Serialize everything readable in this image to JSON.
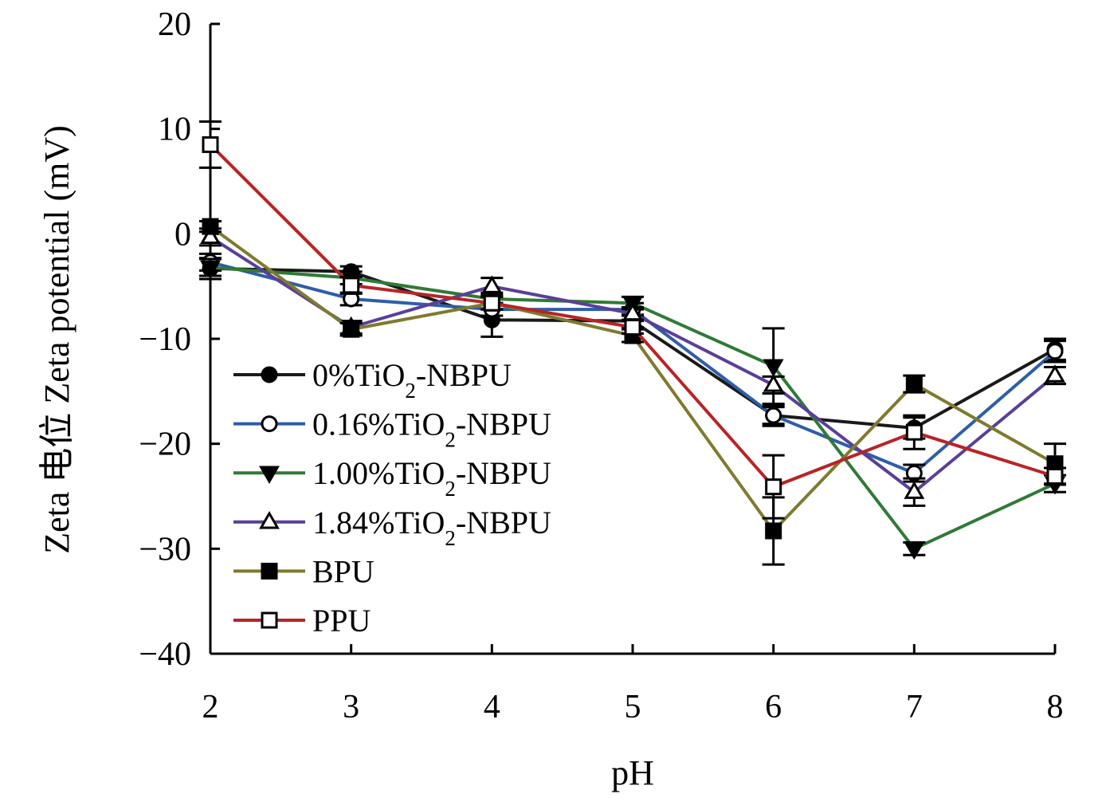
{
  "chart_data": {
    "type": "line",
    "xlabel": "pH",
    "ylabel": "Zeta 电位 Zeta potential (mV)",
    "xlim": [
      2,
      8
    ],
    "ylim": [
      -40,
      20
    ],
    "x": [
      2,
      3,
      4,
      5,
      6,
      7,
      8
    ],
    "x_ticks": [
      2,
      3,
      4,
      5,
      6,
      7,
      8
    ],
    "y_ticks": [
      20,
      10,
      0,
      -10,
      -20,
      -30,
      -40
    ],
    "y_tick_labels": [
      "20",
      "10",
      "0",
      "−10",
      "−20",
      "−30",
      "−40"
    ],
    "grid": false,
    "legend_position": "left",
    "series": [
      {
        "name_prefix": "0%TiO",
        "name_sub": "2",
        "name_suffix": "-NBPU",
        "color": "#1a1a1a",
        "marker": "circle-filled",
        "values": [
          -3.3,
          -3.6,
          -8.2,
          -8.3,
          -17.3,
          -18.5,
          -11.0
        ],
        "errors": [
          1.0,
          0.5,
          1.6,
          0.6,
          1.0,
          1.0,
          1.0
        ]
      },
      {
        "name_prefix": "0.16%TiO",
        "name_sub": "2",
        "name_suffix": "-NBPU",
        "color": "#2e5ea8",
        "marker": "circle-open",
        "values": [
          -2.7,
          -6.2,
          -7.2,
          -7.2,
          -17.3,
          -22.8,
          -11.2
        ],
        "errors": [
          0.8,
          0.6,
          0.6,
          0.6,
          0.8,
          0.8,
          1.0
        ]
      },
      {
        "name_prefix": "1.00%TiO",
        "name_sub": "2",
        "name_suffix": "-NBPU",
        "color": "#2f7a37",
        "marker": "triangle-down-filled",
        "values": [
          -3.2,
          -4.2,
          -6.2,
          -6.6,
          -12.6,
          -30.0,
          -23.8
        ],
        "errors": [
          0.8,
          0.6,
          0.6,
          0.6,
          3.6,
          0.6,
          0.8
        ]
      },
      {
        "name_prefix": "1.84%TiO",
        "name_sub": "2",
        "name_suffix": "-NBPU",
        "color": "#5a3f98",
        "marker": "triangle-open",
        "values": [
          -0.3,
          -8.9,
          -5.0,
          -7.6,
          -14.4,
          -24.6,
          -13.5
        ],
        "errors": [
          0.8,
          0.6,
          0.8,
          0.6,
          0.8,
          1.3,
          0.8
        ]
      },
      {
        "name_prefix": "BPU",
        "name_sub": "",
        "name_suffix": "",
        "color": "#7f7a2e",
        "marker": "square-filled",
        "values": [
          0.7,
          -9.1,
          -6.6,
          -9.7,
          -28.3,
          -14.3,
          -21.9
        ],
        "errors": [
          0.5,
          0.6,
          0.6,
          0.6,
          3.2,
          0.8,
          1.9
        ]
      },
      {
        "name_prefix": "PPU",
        "name_sub": "",
        "name_suffix": "",
        "color": "#b82426",
        "marker": "square-open",
        "values": [
          8.5,
          -4.9,
          -6.6,
          -8.9,
          -24.1,
          -18.9,
          -23.1
        ],
        "errors": [
          2.2,
          0.8,
          0.6,
          0.6,
          3.0,
          1.6,
          0.8
        ]
      }
    ]
  }
}
